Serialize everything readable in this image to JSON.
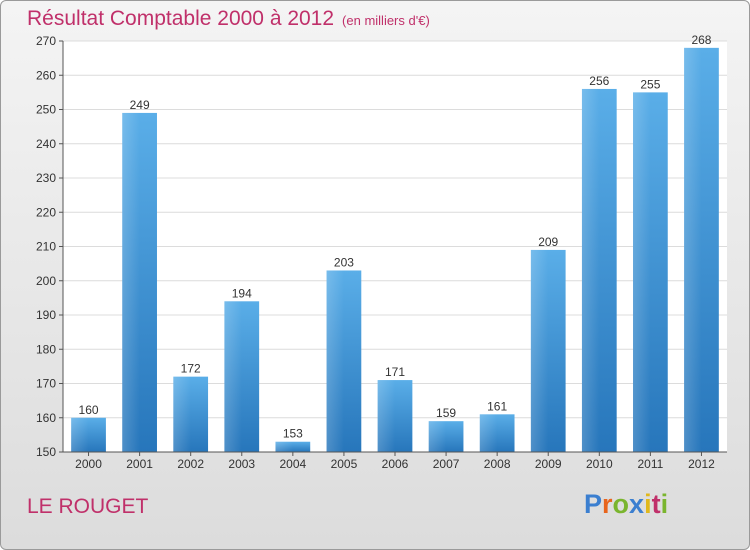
{
  "header": {
    "title": "Résultat Comptable 2000 à 2012",
    "subtitle": "(en milliers d'€)"
  },
  "footer": {
    "commune": "LE ROUGET",
    "logo": {
      "letters": [
        "P",
        "r",
        "o",
        "x",
        "i",
        "t",
        "i"
      ],
      "colors": [
        "#3b7fd0",
        "#e8651d",
        "#7ab52e",
        "#3b7fd0",
        "#e0b81c",
        "#c0306a",
        "#7ab52e"
      ]
    }
  },
  "chart_data": {
    "type": "bar",
    "title": "Résultat Comptable 2000 à 2012",
    "subtitle": "(en milliers d'€)",
    "categories": [
      "2000",
      "2001",
      "2002",
      "2003",
      "2004",
      "2005",
      "2006",
      "2007",
      "2008",
      "2009",
      "2010",
      "2011",
      "2012"
    ],
    "values": [
      160,
      249,
      172,
      194,
      153,
      203,
      171,
      159,
      161,
      209,
      256,
      255,
      268
    ],
    "ylim": [
      150,
      270
    ],
    "yticks": [
      150,
      160,
      170,
      180,
      190,
      200,
      210,
      220,
      230,
      240,
      250,
      260,
      270
    ],
    "grid": true,
    "bar_color": "#3a8fd8",
    "plot_background": "#ffffff"
  }
}
